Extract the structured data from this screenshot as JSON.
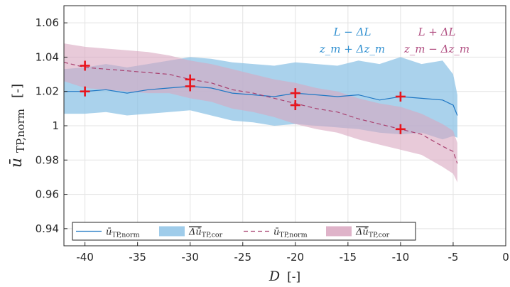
{
  "chart_data": {
    "type": "line",
    "xlabel_main": "D",
    "xlabel_unit": "[-]",
    "ylabel_main": "ū",
    "ylabel_sub": "TP,norm",
    "ylabel_unit": "[-]",
    "xlim": [
      -42,
      0
    ],
    "ylim": [
      0.93,
      1.07
    ],
    "xticks": [
      -40,
      -35,
      -30,
      -25,
      -20,
      -15,
      -10,
      -5,
      0
    ],
    "xtick_labels": [
      "-40",
      "-35",
      "-30",
      "-25",
      "-20",
      "-15",
      "-10",
      "-5",
      "0"
    ],
    "yticks": [
      0.94,
      0.96,
      0.98,
      1.0,
      1.02,
      1.04,
      1.06
    ],
    "ytick_labels": [
      "0.94",
      "0.96",
      "0.98",
      "1",
      "1.02",
      "1.04",
      "1.06"
    ],
    "grid": true,
    "legend_position": "bottom-left",
    "annotations": [
      {
        "line1": "L − ΔL",
        "line2": "z_m + Δz_m",
        "color": "#2f8fd0"
      },
      {
        "line1": "L + ΔL",
        "line2": "z_m − Δz_m",
        "color": "#b04d80"
      }
    ],
    "series": [
      {
        "name": "ū_TP,norm",
        "line_color": "#1f77c4",
        "band_color": "#8ec3e6",
        "dashed": false,
        "x": [
          -42,
          -40,
          -38,
          -36,
          -34,
          -32,
          -30,
          -28,
          -26,
          -24,
          -22,
          -20,
          -18,
          -16,
          -14,
          -12,
          -10,
          -8,
          -6,
          -5,
          -4.6
        ],
        "y": [
          1.02,
          1.02,
          1.021,
          1.019,
          1.021,
          1.022,
          1.023,
          1.022,
          1.019,
          1.018,
          1.017,
          1.019,
          1.018,
          1.017,
          1.018,
          1.015,
          1.017,
          1.016,
          1.015,
          1.012,
          1.006
        ],
        "upper": [
          1.033,
          1.034,
          1.036,
          1.034,
          1.036,
          1.038,
          1.04,
          1.039,
          1.037,
          1.036,
          1.035,
          1.037,
          1.036,
          1.035,
          1.038,
          1.036,
          1.04,
          1.036,
          1.038,
          1.03,
          1.018
        ],
        "lower": [
          1.007,
          1.007,
          1.008,
          1.006,
          1.007,
          1.008,
          1.009,
          1.006,
          1.003,
          1.002,
          1.0,
          1.001,
          1.0,
          0.999,
          0.998,
          0.996,
          0.995,
          0.996,
          0.992,
          0.994,
          0.993
        ]
      },
      {
        "name": "ū_TP,norm",
        "line_color": "#a8406f",
        "band_color": "#d9a6c0",
        "dashed": true,
        "x": [
          -42,
          -40,
          -38,
          -36,
          -34,
          -32,
          -30,
          -28,
          -26,
          -24,
          -22,
          -20,
          -18,
          -16,
          -14,
          -12,
          -10,
          -8,
          -6,
          -5,
          -4.6
        ],
        "y": [
          1.037,
          1.034,
          1.033,
          1.032,
          1.031,
          1.03,
          1.027,
          1.025,
          1.021,
          1.019,
          1.016,
          1.013,
          1.01,
          1.008,
          1.004,
          1.001,
          0.998,
          0.995,
          0.988,
          0.985,
          0.978
        ],
        "upper": [
          1.048,
          1.046,
          1.045,
          1.044,
          1.043,
          1.041,
          1.038,
          1.036,
          1.033,
          1.03,
          1.027,
          1.025,
          1.022,
          1.02,
          1.016,
          1.013,
          1.011,
          1.007,
          1.001,
          0.997,
          0.99
        ],
        "lower": [
          1.026,
          1.022,
          1.021,
          1.02,
          1.019,
          1.019,
          1.016,
          1.014,
          1.01,
          1.008,
          1.005,
          1.001,
          0.998,
          0.996,
          0.992,
          0.989,
          0.986,
          0.983,
          0.976,
          0.972,
          0.967
        ]
      }
    ],
    "markers": {
      "color": "#e8141c",
      "points": [
        {
          "x": -40,
          "y": 1.035
        },
        {
          "x": -40,
          "y": 1.02
        },
        {
          "x": -30,
          "y": 1.027
        },
        {
          "x": -30,
          "y": 1.023
        },
        {
          "x": -20,
          "y": 1.019
        },
        {
          "x": -20,
          "y": 1.012
        },
        {
          "x": -10,
          "y": 1.017
        },
        {
          "x": -10,
          "y": 0.998
        }
      ]
    },
    "legend": [
      {
        "kind": "line",
        "label_main": "ū",
        "label_sub": "TP,norm",
        "series": 0
      },
      {
        "kind": "band",
        "label_main": "Δū",
        "label_sub": "TP,cor",
        "series": 0
      },
      {
        "kind": "line",
        "label_main": "ū",
        "label_sub": "TP,norm",
        "series": 1
      },
      {
        "kind": "band",
        "label_main": "Δū",
        "label_sub": "TP,cor",
        "series": 1
      }
    ]
  }
}
